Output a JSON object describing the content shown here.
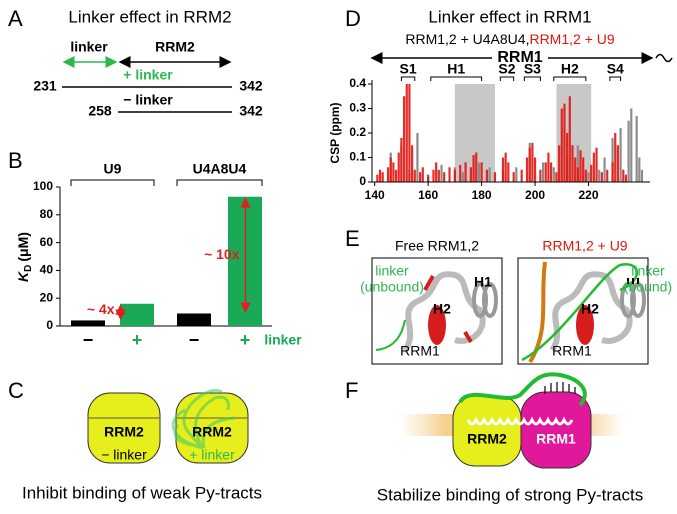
{
  "chart_data": [
    {
      "type": "bar",
      "ylabel": "K",
      "ylabel_sub": "D",
      "ylabel_unit": "(μM)",
      "categories": [
        "−",
        "+",
        "−",
        "+"
      ],
      "values": [
        4,
        16,
        9,
        93
      ],
      "colors": [
        "#000000",
        "#1aaa55",
        "#000000",
        "#1aaa55"
      ],
      "groups": [
        "U9",
        "U4A8U4"
      ],
      "xlabel": "linker",
      "xlabel_color": "#1aaa55",
      "annotations": [
        {
          "text": "~ 4x",
          "between": [
            0,
            1
          ]
        },
        {
          "text": "~ 10x",
          "between": [
            2,
            3
          ]
        }
      ],
      "annotation_color": "#e02020",
      "ylim": [
        0,
        100
      ],
      "yticks": [
        0,
        20,
        40,
        60,
        80,
        100
      ]
    },
    {
      "type": "bar",
      "title": "Linker effect in RRM1",
      "ylabel": "CSP (ppm)",
      "domain_label": "RRM1",
      "legend_separator": ",",
      "series": [
        {
          "name": "RRM1,2 + U4A8U4",
          "color": "#8c8c8c",
          "x": [
            146,
            150,
            153,
            156,
            160,
            165,
            170,
            173,
            179,
            183,
            188,
            193,
            198,
            203,
            207,
            212,
            216,
            220,
            224,
            226,
            229,
            232,
            235,
            236,
            238,
            239,
            240
          ],
          "values": [
            0.12,
            0.15,
            0.05,
            0.2,
            0.02,
            0.07,
            0.06,
            0.04,
            0.08,
            0.06,
            0.05,
            0.06,
            0.16,
            0.08,
            0.06,
            0.1,
            0.15,
            0.04,
            0.05,
            0.1,
            0.18,
            0.22,
            0.25,
            0.3,
            0.27,
            0.1,
            0.05
          ]
        },
        {
          "name": "RRM1,2 + U9",
          "color": "#e3140f",
          "x": [
            141,
            142,
            143,
            145,
            146,
            147,
            148,
            149,
            150,
            151,
            152,
            153,
            154,
            155,
            157,
            158,
            160,
            162,
            163,
            164,
            166,
            168,
            170,
            172,
            174,
            176,
            177,
            178,
            180,
            182,
            185,
            188,
            189,
            190,
            192,
            195,
            197,
            198,
            199,
            200,
            202,
            204,
            205,
            206,
            208,
            209,
            210,
            211,
            212,
            213,
            214,
            215,
            216,
            217,
            218,
            219,
            221,
            222,
            223,
            225,
            227,
            229,
            230,
            231,
            233,
            234
          ],
          "values": [
            0.03,
            0.05,
            0.04,
            0.06,
            0.1,
            0.08,
            0.05,
            0.12,
            0.18,
            0.35,
            0.4,
            0.4,
            0.15,
            0.05,
            0.04,
            0.06,
            0.03,
            0.05,
            0.08,
            0.05,
            0.04,
            0.06,
            0.05,
            0.07,
            0.08,
            0.06,
            0.11,
            0.12,
            0.08,
            0.05,
            0.04,
            0.1,
            0.12,
            0.08,
            0.04,
            0.05,
            0.1,
            0.14,
            0.16,
            0.1,
            0.05,
            0.08,
            0.12,
            0.08,
            0.04,
            0.15,
            0.3,
            0.32,
            0.2,
            0.35,
            0.15,
            0.1,
            0.06,
            0.13,
            0.1,
            0.05,
            0.07,
            0.12,
            0.14,
            0.04,
            0.05,
            0.08,
            0.2,
            0.15,
            0.05,
            0.03
          ]
        }
      ],
      "elements": [
        {
          "label": "S1",
          "range": [
            150,
            155
          ]
        },
        {
          "label": "H1",
          "range": [
            161,
            180
          ]
        },
        {
          "label": "S2",
          "range": [
            187,
            192
          ]
        },
        {
          "label": "S3",
          "range": [
            196,
            202
          ]
        },
        {
          "label": "H2",
          "range": [
            207,
            219
          ]
        },
        {
          "label": "S4",
          "range": [
            228,
            232
          ]
        }
      ],
      "shaded_ranges": [
        [
          170,
          185
        ],
        [
          208,
          221
        ]
      ],
      "xlim": [
        139,
        243
      ],
      "xticks": [
        140,
        160,
        180,
        200,
        220
      ],
      "ylim": [
        0,
        0.4
      ],
      "yticks": [
        0,
        0.1,
        0.2,
        0.3,
        0.4
      ]
    }
  ],
  "panels": {
    "a": {
      "letter": "A",
      "title": "Linker effect in RRM2",
      "linker": "linker",
      "domain": "RRM2",
      "long": {
        "label": "+ linker",
        "start": "231",
        "end": "342"
      },
      "short": {
        "label": "− linker",
        "start": "258",
        "end": "342"
      }
    },
    "b": {
      "letter": "B"
    },
    "c": {
      "letter": "C",
      "domain": "RRM2",
      "minus": "− linker",
      "plus": "+ linker",
      "caption": "Inhibit binding of weak Py-tracts"
    },
    "d": {
      "letter": "D"
    },
    "e": {
      "letter": "E",
      "left_title": "Free RRM1,2",
      "right_title": "RRM1,2 + U9",
      "left_linker": [
        "linker",
        "(unbound)"
      ],
      "right_linker": [
        "linker",
        "(bound)"
      ],
      "h1": "H1",
      "h2": "H2",
      "domain": "RRM1"
    },
    "f": {
      "letter": "F",
      "rrm2": "RRM2",
      "rrm1": "RRM1",
      "caption": "Stabilize binding of strong Py-tracts"
    }
  }
}
